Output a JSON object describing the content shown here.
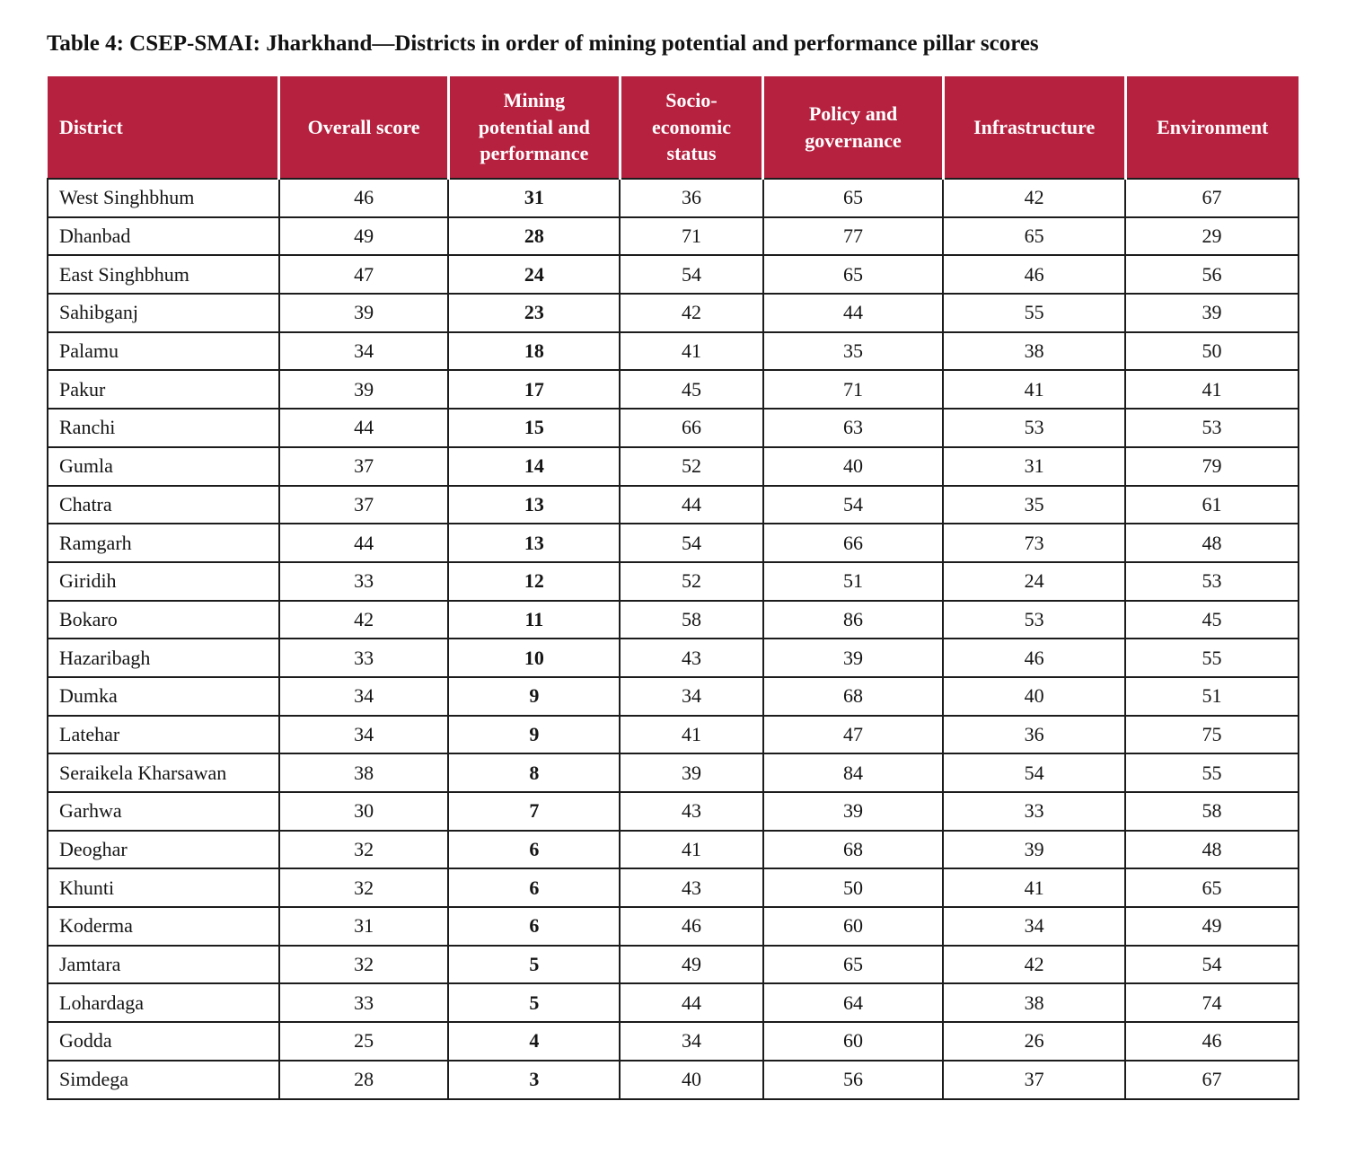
{
  "title": "Table 4: CSEP-SMAI: Jharkhand—Districts in order of mining potential and performance pillar scores",
  "colors": {
    "header_bg": "#B6213F",
    "header_text": "#FFFFFF",
    "border_color": "#1C1C1C",
    "page_bg": "#FFFFFF"
  },
  "table": {
    "columns": [
      {
        "key": "district",
        "label": "District"
      },
      {
        "key": "overall-score",
        "label": "Overall score"
      },
      {
        "key": "mining-potential-performance",
        "label": "Mining\npotential and\nperformance"
      },
      {
        "key": "socio-economic-status",
        "label": "Socio-\neconomic\nstatus"
      },
      {
        "key": "policy-governance",
        "label": "Policy and\ngovernance"
      },
      {
        "key": "infrastructure",
        "label": "Infrastructure"
      },
      {
        "key": "environment",
        "label": "Environment"
      }
    ],
    "rows": [
      [
        "West Singhbhum",
        46,
        31,
        36,
        65,
        42,
        67
      ],
      [
        "Dhanbad",
        49,
        28,
        71,
        77,
        65,
        29
      ],
      [
        "East Singhbhum",
        47,
        24,
        54,
        65,
        46,
        56
      ],
      [
        "Sahibganj",
        39,
        23,
        42,
        44,
        55,
        39
      ],
      [
        "Palamu",
        34,
        18,
        41,
        35,
        38,
        50
      ],
      [
        "Pakur",
        39,
        17,
        45,
        71,
        41,
        41
      ],
      [
        "Ranchi",
        44,
        15,
        66,
        63,
        53,
        53
      ],
      [
        "Gumla",
        37,
        14,
        52,
        40,
        31,
        79
      ],
      [
        "Chatra",
        37,
        13,
        44,
        54,
        35,
        61
      ],
      [
        "Ramgarh",
        44,
        13,
        54,
        66,
        73,
        48
      ],
      [
        "Giridih",
        33,
        12,
        52,
        51,
        24,
        53
      ],
      [
        "Bokaro",
        42,
        11,
        58,
        86,
        53,
        45
      ],
      [
        "Hazaribagh",
        33,
        10,
        43,
        39,
        46,
        55
      ],
      [
        "Dumka",
        34,
        9,
        34,
        68,
        40,
        51
      ],
      [
        "Latehar",
        34,
        9,
        41,
        47,
        36,
        75
      ],
      [
        "Seraikela Kharsawan",
        38,
        8,
        39,
        84,
        54,
        55
      ],
      [
        "Garhwa",
        30,
        7,
        43,
        39,
        33,
        58
      ],
      [
        "Deoghar",
        32,
        6,
        41,
        68,
        39,
        48
      ],
      [
        "Khunti",
        32,
        6,
        43,
        50,
        41,
        65
      ],
      [
        "Koderma",
        31,
        6,
        46,
        60,
        34,
        49
      ],
      [
        "Jamtara",
        32,
        5,
        49,
        65,
        42,
        54
      ],
      [
        "Lohardaga",
        33,
        5,
        44,
        64,
        38,
        74
      ],
      [
        "Godda",
        25,
        4,
        34,
        60,
        26,
        46
      ],
      [
        "Simdega",
        28,
        3,
        40,
        56,
        37,
        67
      ]
    ]
  }
}
